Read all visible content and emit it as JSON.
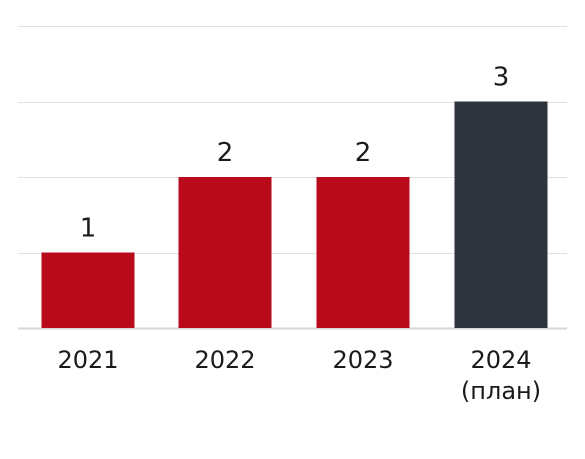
{
  "chart_data": {
    "type": "bar",
    "categories": [
      [
        "2021"
      ],
      [
        "2022"
      ],
      [
        "2023"
      ],
      [
        "2024",
        "(план)"
      ]
    ],
    "values": [
      1,
      2,
      2,
      3
    ],
    "bar_colors": [
      "#b90a1b",
      "#b90a1b",
      "#b90a1b",
      "#2e343d"
    ],
    "data_labels": [
      "1",
      "2",
      "2",
      "3"
    ],
    "ylim": [
      0,
      4
    ],
    "grid": true,
    "gridline_color": "#e0e0e0",
    "baseline_color": "#d6d6d6",
    "title": "",
    "xlabel": "",
    "ylabel": ""
  }
}
